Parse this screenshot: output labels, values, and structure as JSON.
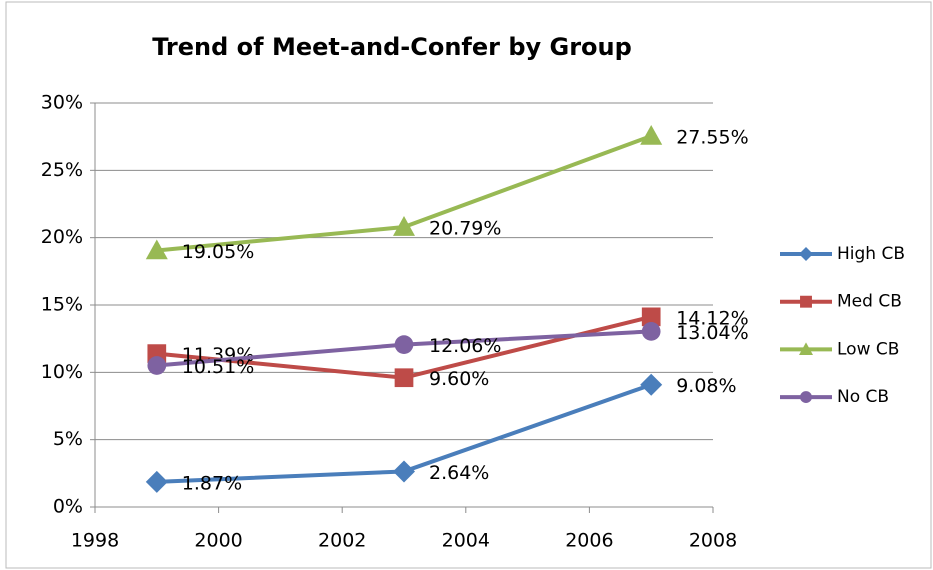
{
  "chart_data": {
    "type": "line",
    "title": "Trend of Meet-and-Confer by Group",
    "x": [
      1999,
      2003,
      2007
    ],
    "xlim": [
      1998,
      2008
    ],
    "xticks": [
      1998,
      2000,
      2002,
      2004,
      2006,
      2008
    ],
    "ylim": [
      0,
      30
    ],
    "yticks": [
      {
        "value": 0,
        "label": "0%"
      },
      {
        "value": 5,
        "label": "5%"
      },
      {
        "value": 10,
        "label": "10%"
      },
      {
        "value": 15,
        "label": "15%"
      },
      {
        "value": 20,
        "label": "20%"
      },
      {
        "value": 25,
        "label": "25%"
      },
      {
        "value": 30,
        "label": "30%"
      }
    ],
    "grid": true,
    "legend": "right",
    "series": [
      {
        "name": "High CB",
        "color": "#4a7ebb",
        "marker": "diamond",
        "values": [
          1.87,
          2.64,
          9.08
        ],
        "value_labels": [
          "1.87%",
          "2.64%",
          "9.08%"
        ]
      },
      {
        "name": "Med CB",
        "color": "#be4b48",
        "marker": "square",
        "values": [
          11.39,
          9.6,
          14.12
        ],
        "value_labels": [
          "11.39%",
          "9.60%",
          "14.12%"
        ]
      },
      {
        "name": "Low CB",
        "color": "#98b954",
        "marker": "triangle",
        "values": [
          19.05,
          20.79,
          27.55
        ],
        "value_labels": [
          "19.05%",
          "20.79%",
          "27.55%"
        ]
      },
      {
        "name": "No CB",
        "color": "#7e62a1",
        "marker": "circle",
        "values": [
          10.51,
          12.06,
          13.04
        ],
        "value_labels": [
          "10.51%",
          "12.06%",
          "13.04%"
        ]
      }
    ]
  }
}
